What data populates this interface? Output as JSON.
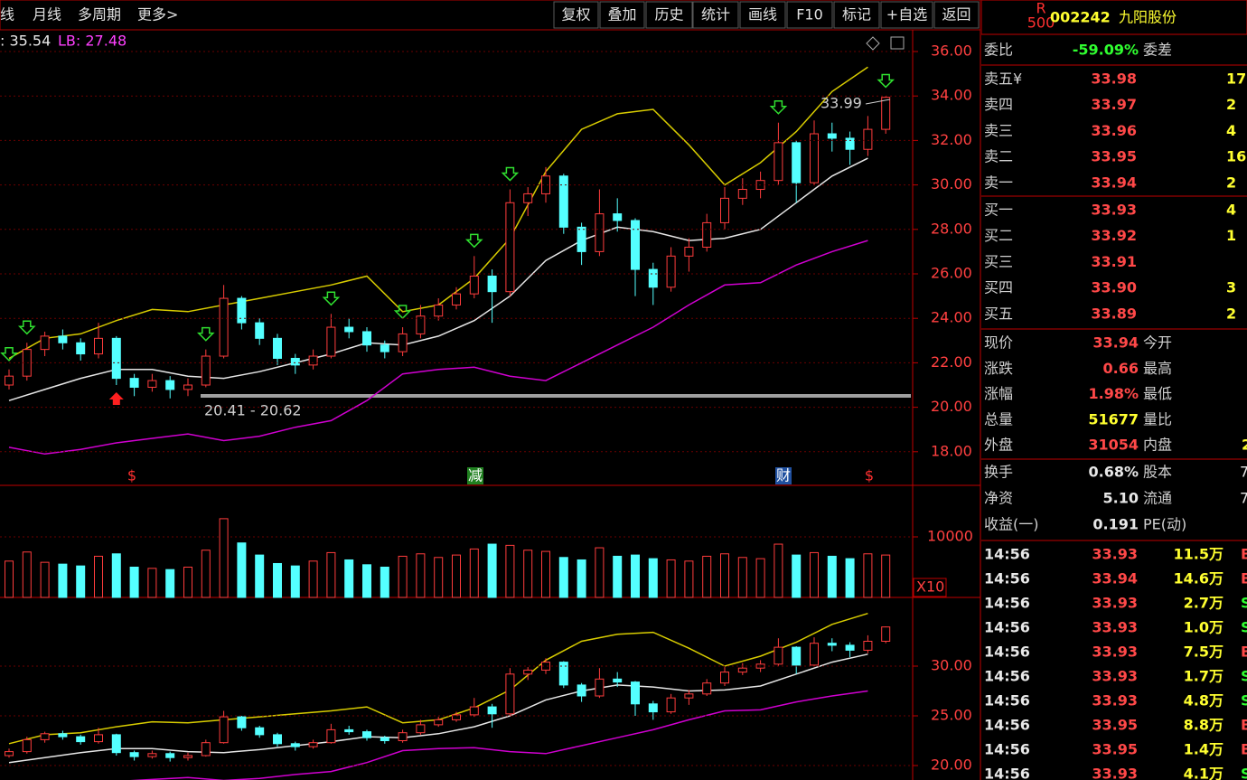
{
  "toolbar": {
    "left": [
      "线",
      "月线",
      "多周期",
      "更多>"
    ],
    "buttons": [
      "复权",
      "叠加",
      "历史",
      "统计",
      "画线",
      "F10",
      "标记",
      "+自选",
      "返回"
    ]
  },
  "chart": {
    "legend": [
      ": 35.54",
      "LB: 27.48"
    ],
    "price_ticks": [
      {
        "value": 36,
        "label": "36.00"
      },
      {
        "value": 34,
        "label": "34.00"
      },
      {
        "value": 32,
        "label": "32.00"
      },
      {
        "value": 30,
        "label": "30.00"
      },
      {
        "value": 28,
        "label": "28.00"
      },
      {
        "value": 26,
        "label": "26.00"
      },
      {
        "value": 24,
        "label": "24.00"
      },
      {
        "value": 22,
        "label": "22.00"
      },
      {
        "value": 20,
        "label": "20.00"
      },
      {
        "value": 18,
        "label": "18.00"
      }
    ],
    "candles": [
      [
        21.0,
        21.4,
        21.7,
        20.8
      ],
      [
        21.4,
        22.6,
        22.9,
        21.2
      ],
      [
        22.6,
        23.2,
        23.4,
        22.3
      ],
      [
        23.2,
        22.9,
        23.5,
        22.6
      ],
      [
        22.9,
        22.4,
        23.1,
        22.1
      ],
      [
        22.4,
        23.1,
        23.8,
        22.2
      ],
      [
        23.1,
        21.3,
        23.2,
        21.0
      ],
      [
        21.3,
        20.9,
        21.5,
        20.5
      ],
      [
        20.9,
        21.2,
        21.5,
        20.7
      ],
      [
        21.2,
        20.8,
        21.4,
        20.4
      ],
      [
        20.8,
        21.0,
        21.3,
        20.5
      ],
      [
        21.0,
        22.3,
        22.6,
        20.9
      ],
      [
        22.3,
        24.9,
        25.5,
        22.2
      ],
      [
        24.9,
        23.8,
        25.0,
        23.5
      ],
      [
        23.8,
        23.1,
        24.0,
        22.8
      ],
      [
        23.1,
        22.2,
        23.3,
        21.9
      ],
      [
        22.2,
        21.9,
        22.4,
        21.5
      ],
      [
        21.9,
        22.3,
        22.6,
        21.7
      ],
      [
        22.3,
        23.6,
        24.2,
        22.2
      ],
      [
        23.6,
        23.4,
        24.0,
        23.1
      ],
      [
        23.4,
        22.8,
        23.6,
        22.5
      ],
      [
        22.8,
        22.5,
        23.0,
        22.2
      ],
      [
        22.5,
        23.3,
        23.6,
        22.3
      ],
      [
        23.3,
        24.1,
        24.6,
        23.1
      ],
      [
        24.1,
        24.6,
        24.9,
        23.9
      ],
      [
        24.6,
        25.1,
        25.4,
        24.4
      ],
      [
        25.1,
        25.9,
        26.8,
        24.9
      ],
      [
        25.9,
        25.2,
        26.2,
        23.8
      ],
      [
        25.2,
        29.2,
        29.8,
        25.0
      ],
      [
        29.2,
        29.6,
        29.9,
        28.6
      ],
      [
        29.6,
        30.4,
        30.8,
        29.2
      ],
      [
        30.4,
        28.1,
        30.5,
        27.8
      ],
      [
        28.1,
        27.0,
        28.3,
        26.4
      ],
      [
        27.0,
        28.7,
        29.8,
        26.8
      ],
      [
        28.7,
        28.4,
        29.4,
        27.9
      ],
      [
        28.4,
        26.2,
        28.5,
        25.0
      ],
      [
        26.2,
        25.4,
        26.5,
        24.6
      ],
      [
        25.4,
        26.8,
        27.2,
        25.2
      ],
      [
        26.8,
        27.2,
        27.6,
        26.1
      ],
      [
        27.2,
        28.3,
        28.7,
        27.0
      ],
      [
        28.3,
        29.4,
        29.9,
        28.0
      ],
      [
        29.4,
        29.8,
        30.3,
        29.1
      ],
      [
        29.8,
        30.2,
        30.6,
        29.4
      ],
      [
        30.2,
        31.9,
        32.8,
        30.0
      ],
      [
        31.9,
        30.1,
        32.0,
        29.2
      ],
      [
        30.1,
        32.3,
        32.9,
        30.0
      ],
      [
        32.3,
        32.1,
        32.8,
        31.5
      ],
      [
        32.1,
        31.6,
        32.4,
        30.9
      ],
      [
        31.6,
        32.5,
        33.1,
        31.3
      ],
      [
        32.5,
        33.94,
        33.99,
        32.3
      ]
    ],
    "bands": {
      "upper": [
        22.2,
        23.1,
        23.3,
        23.9,
        24.4,
        24.3,
        24.6,
        24.9,
        25.2,
        25.5,
        25.9,
        24.3,
        24.6,
        25.8,
        27.6,
        30.6,
        32.5,
        33.2,
        33.4,
        31.8,
        30.0,
        31.0,
        32.4,
        34.2,
        35.3
      ],
      "mid": [
        20.3,
        20.8,
        21.3,
        21.7,
        21.7,
        21.4,
        21.3,
        21.6,
        22.0,
        22.4,
        22.9,
        22.8,
        23.2,
        23.9,
        25.0,
        26.6,
        27.5,
        28.1,
        27.9,
        27.5,
        27.6,
        28.0,
        29.2,
        30.4,
        31.2
      ],
      "lower": [
        18.2,
        17.9,
        18.1,
        18.4,
        18.6,
        18.8,
        18.5,
        18.7,
        19.1,
        19.4,
        20.3,
        21.5,
        21.7,
        21.8,
        21.4,
        21.2,
        22.0,
        22.8,
        23.6,
        24.6,
        25.5,
        25.6,
        26.4,
        27.0,
        27.5
      ]
    },
    "last_high_label": "33.99",
    "range_label": "20.41 - 20.62",
    "event_markers": [
      "$",
      "减",
      "财",
      "$"
    ],
    "volume": [
      6000,
      7500,
      5800,
      5500,
      5200,
      6800,
      7200,
      5000,
      4800,
      4600,
      5000,
      7800,
      13000,
      9000,
      7000,
      5600,
      5200,
      6000,
      7400,
      6200,
      5400,
      5000,
      6800,
      7200,
      6600,
      7000,
      8000,
      8800,
      8600,
      7800,
      7600,
      6600,
      6200,
      8200,
      6800,
      7000,
      6400,
      6200,
      6000,
      6800,
      7200,
      6600,
      6400,
      8800,
      7000,
      7400,
      6800,
      6400,
      7200,
      7000
    ],
    "volume_ticks": [
      10000
    ],
    "volume_unit": "X10",
    "lower_ticks": [
      {
        "value": 30,
        "label": "30.00"
      },
      {
        "value": 25,
        "label": "25.00"
      },
      {
        "value": 20,
        "label": "20.00"
      }
    ]
  },
  "quote": {
    "badge": [
      "R",
      "500"
    ],
    "code": "002242",
    "name": "九阳股份",
    "ratio": [
      "委比",
      "-59.09%",
      "委差"
    ],
    "asks": [
      [
        "卖五¥",
        "33.98",
        "17"
      ],
      [
        "卖四",
        "33.97",
        "2"
      ],
      [
        "卖三",
        "33.96",
        "4"
      ],
      [
        "卖二",
        "33.95",
        "16"
      ],
      [
        "卖一",
        "33.94",
        "2"
      ]
    ],
    "bids": [
      [
        "买一",
        "33.93",
        "4"
      ],
      [
        "买二",
        "33.92",
        "1"
      ],
      [
        "买三",
        "33.91"
      ],
      [
        "买四",
        "33.90",
        "3"
      ],
      [
        "买五",
        "33.89",
        "2"
      ]
    ],
    "stats": [
      [
        "现价",
        "33.94",
        "今开"
      ],
      [
        "涨跌",
        "0.66",
        "最高"
      ],
      [
        "涨幅",
        "1.98%",
        "最低"
      ],
      [
        "总量",
        "51677",
        "量比"
      ],
      [
        "外盘",
        "31054",
        "内盘",
        "2"
      ]
    ],
    "finance": [
      [
        "换手",
        "0.68%",
        "股本",
        "7"
      ],
      [
        "净资",
        "5.10",
        "流通",
        "7"
      ],
      [
        "收益(一)",
        "0.191",
        "PE(动)"
      ]
    ],
    "trades": [
      [
        "14:56",
        "33.93",
        "11.5万",
        "B"
      ],
      [
        "14:56",
        "33.94",
        "14.6万",
        "B"
      ],
      [
        "14:56",
        "33.93",
        "2.7万",
        "S"
      ],
      [
        "14:56",
        "33.93",
        "1.0万",
        "S"
      ],
      [
        "14:56",
        "33.93",
        "7.5万",
        "B"
      ],
      [
        "14:56",
        "33.93",
        "1.7万",
        "S"
      ],
      [
        "14:56",
        "33.93",
        "4.8万",
        "S"
      ],
      [
        "14:56",
        "33.95",
        "8.8万",
        "B"
      ],
      [
        "14:56",
        "33.95",
        "1.4万",
        "B"
      ],
      [
        "14:56",
        "33.93",
        "4.1万",
        "S"
      ]
    ]
  }
}
